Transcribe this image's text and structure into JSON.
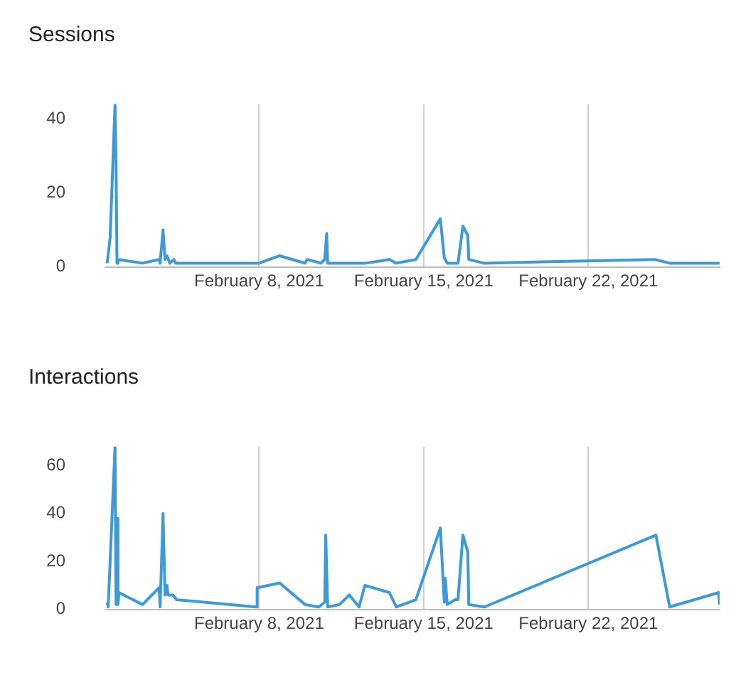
{
  "chart_data": [
    {
      "type": "line",
      "title": "Sessions",
      "x": [
        "2021-02-01T13:00",
        "2021-02-01T16:00",
        "2021-02-01T21:00",
        "2021-02-01T22:00",
        "2021-02-01T23:00",
        "2021-02-02T00:00",
        "2021-02-03T01:00",
        "2021-02-03T18:00",
        "2021-02-03T19:00",
        "2021-02-03T22:00",
        "2021-02-04T00:00",
        "2021-02-04T02:00",
        "2021-02-04T05:00",
        "2021-02-04T09:00",
        "2021-02-04T11:00",
        "2021-02-08T00:00",
        "2021-02-08T21:00",
        "2021-02-09T23:00",
        "2021-02-10T01:00",
        "2021-02-10T15:00",
        "2021-02-10T19:00",
        "2021-02-10T21:00",
        "2021-02-10T22:00",
        "2021-02-12T13:00",
        "2021-02-13T13:00",
        "2021-02-13T20:00",
        "2021-02-14T16:00",
        "2021-02-15T17:00",
        "2021-02-15T21:00",
        "2021-02-16T00:00",
        "2021-02-16T11:00",
        "2021-02-16T16:00",
        "2021-02-16T21:00",
        "2021-02-16T22:00",
        "2021-02-17T13:00",
        "2021-02-24T20:00",
        "2021-02-25T11:00",
        "2021-02-27T14:00"
      ],
      "series": [
        {
          "color": "#3d9ad8",
          "values": [
            1,
            8,
            44,
            28,
            1,
            2,
            1,
            2,
            1,
            10,
            2,
            3,
            1,
            2,
            1,
            1,
            3,
            1,
            2,
            1,
            2,
            9,
            1,
            1,
            2,
            1,
            2,
            13,
            2.5,
            1,
            1,
            11,
            8.5,
            2,
            1,
            2,
            1,
            1
          ]
        }
      ],
      "xlim": [
        "2021-02-01T11:00",
        "2021-02-27T14:00"
      ],
      "xticks": [
        {
          "value": "2021-02-08",
          "label": "February 8, 2021"
        },
        {
          "value": "2021-02-15",
          "label": "February 15, 2021"
        },
        {
          "value": "2021-02-22",
          "label": "February 22, 2021"
        }
      ],
      "ylim": [
        0,
        44
      ],
      "yticks": [
        0,
        20,
        40
      ],
      "grid": "x",
      "legend": false,
      "marker": "none",
      "line_style": "solid"
    },
    {
      "type": "line",
      "title": "Interactions",
      "x": [
        "2021-02-01T13:00",
        "2021-02-01T14:00",
        "2021-02-01T21:00",
        "2021-02-01T22:00",
        "2021-02-01T23:00",
        "2021-02-02T00:00",
        "2021-02-02T01:00",
        "2021-02-03T01:00",
        "2021-02-03T18:00",
        "2021-02-03T19:00",
        "2021-02-03T22:00",
        "2021-02-04T00:00",
        "2021-02-04T02:00",
        "2021-02-04T03:00",
        "2021-02-04T08:00",
        "2021-02-04T12:00",
        "2021-02-07T21:00",
        "2021-02-07T22:00",
        "2021-02-08T21:00",
        "2021-02-09T23:00",
        "2021-02-10T13:00",
        "2021-02-10T19:00",
        "2021-02-10T20:00",
        "2021-02-10T22:00",
        "2021-02-11T10:00",
        "2021-02-11T20:00",
        "2021-02-12T06:00",
        "2021-02-12T12:00",
        "2021-02-13T13:00",
        "2021-02-13T20:00",
        "2021-02-14T16:00",
        "2021-02-15T17:00",
        "2021-02-15T21:00",
        "2021-02-15T22:00",
        "2021-02-16T00:00",
        "2021-02-16T08:00",
        "2021-02-16T11:00",
        "2021-02-16T16:00",
        "2021-02-16T21:00",
        "2021-02-16T22:00",
        "2021-02-17T14:00",
        "2021-02-24T21:00",
        "2021-02-25T11:00",
        "2021-02-27T13:00",
        "2021-02-27T14:00"
      ],
      "series": [
        {
          "color": "#3d9ad8",
          "values": [
            3,
            1,
            68,
            2,
            38,
            2,
            7,
            2,
            9,
            1,
            40,
            6,
            10,
            6,
            6,
            4,
            1,
            9,
            11,
            2,
            1,
            3,
            31,
            1,
            2,
            6,
            1,
            10,
            7,
            1,
            4,
            34,
            3,
            13,
            2,
            4,
            4,
            31,
            24,
            2,
            1,
            31,
            1,
            7,
            2
          ]
        }
      ],
      "xlim": [
        "2021-02-01T11:00",
        "2021-02-27T14:00"
      ],
      "xticks": [
        {
          "value": "2021-02-08",
          "label": "February 8, 2021"
        },
        {
          "value": "2021-02-15",
          "label": "February 15, 2021"
        },
        {
          "value": "2021-02-22",
          "label": "February 22, 2021"
        }
      ],
      "ylim": [
        0,
        68
      ],
      "yticks": [
        0,
        20,
        40,
        60
      ],
      "grid": "x",
      "legend": false,
      "marker": "none",
      "line_style": "solid"
    }
  ]
}
